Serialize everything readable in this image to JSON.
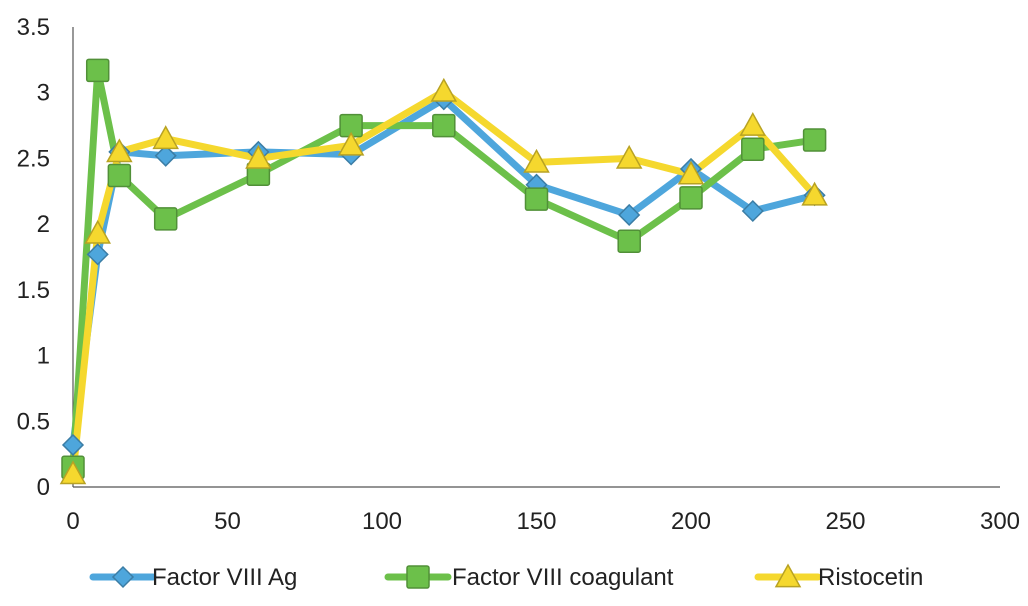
{
  "chart_data": {
    "type": "line",
    "title": "",
    "xlabel": "",
    "ylabel": "",
    "xlim": [
      0,
      300
    ],
    "ylim": [
      0,
      3.5
    ],
    "x_ticks": [
      "0",
      "50",
      "100",
      "150",
      "200",
      "250",
      "300"
    ],
    "y_ticks": [
      "0",
      "0.5",
      "1",
      "1.5",
      "2",
      "2.5",
      "3",
      "3.5"
    ],
    "grid": false,
    "legend_position": "bottom",
    "series": [
      {
        "name": "Factor VIII Ag",
        "color": "#4ea6dc",
        "marker": "diamond",
        "points": [
          {
            "x": 0,
            "y": 0.32
          },
          {
            "x": 8,
            "y": 1.77
          },
          {
            "x": 15,
            "y": 2.55
          },
          {
            "x": 30,
            "y": 2.52
          },
          {
            "x": 60,
            "y": 2.55
          },
          {
            "x": 90,
            "y": 2.53
          },
          {
            "x": 120,
            "y": 2.95
          },
          {
            "x": 150,
            "y": 2.3
          },
          {
            "x": 180,
            "y": 2.07
          },
          {
            "x": 200,
            "y": 2.42
          },
          {
            "x": 220,
            "y": 2.1
          },
          {
            "x": 240,
            "y": 2.22
          }
        ]
      },
      {
        "name": "Factor VIII coagulant",
        "color": "#6cc04a",
        "marker": "square",
        "points": [
          {
            "x": 0,
            "y": 0.15
          },
          {
            "x": 8,
            "y": 3.17
          },
          {
            "x": 15,
            "y": 2.37
          },
          {
            "x": 30,
            "y": 2.04
          },
          {
            "x": 60,
            "y": 2.38
          },
          {
            "x": 90,
            "y": 2.75
          },
          {
            "x": 120,
            "y": 2.75
          },
          {
            "x": 150,
            "y": 2.19
          },
          {
            "x": 180,
            "y": 1.87
          },
          {
            "x": 200,
            "y": 2.2
          },
          {
            "x": 220,
            "y": 2.57
          },
          {
            "x": 240,
            "y": 2.64
          }
        ]
      },
      {
        "name": "Ristocetin",
        "color": "#f5d82e",
        "marker": "triangle",
        "points": [
          {
            "x": 0,
            "y": 0.1
          },
          {
            "x": 8,
            "y": 1.93
          },
          {
            "x": 15,
            "y": 2.55
          },
          {
            "x": 30,
            "y": 2.65
          },
          {
            "x": 60,
            "y": 2.5
          },
          {
            "x": 90,
            "y": 2.6
          },
          {
            "x": 120,
            "y": 3.01
          },
          {
            "x": 150,
            "y": 2.47
          },
          {
            "x": 180,
            "y": 2.5
          },
          {
            "x": 200,
            "y": 2.38
          },
          {
            "x": 220,
            "y": 2.75
          },
          {
            "x": 240,
            "y": 2.22
          }
        ]
      }
    ]
  }
}
